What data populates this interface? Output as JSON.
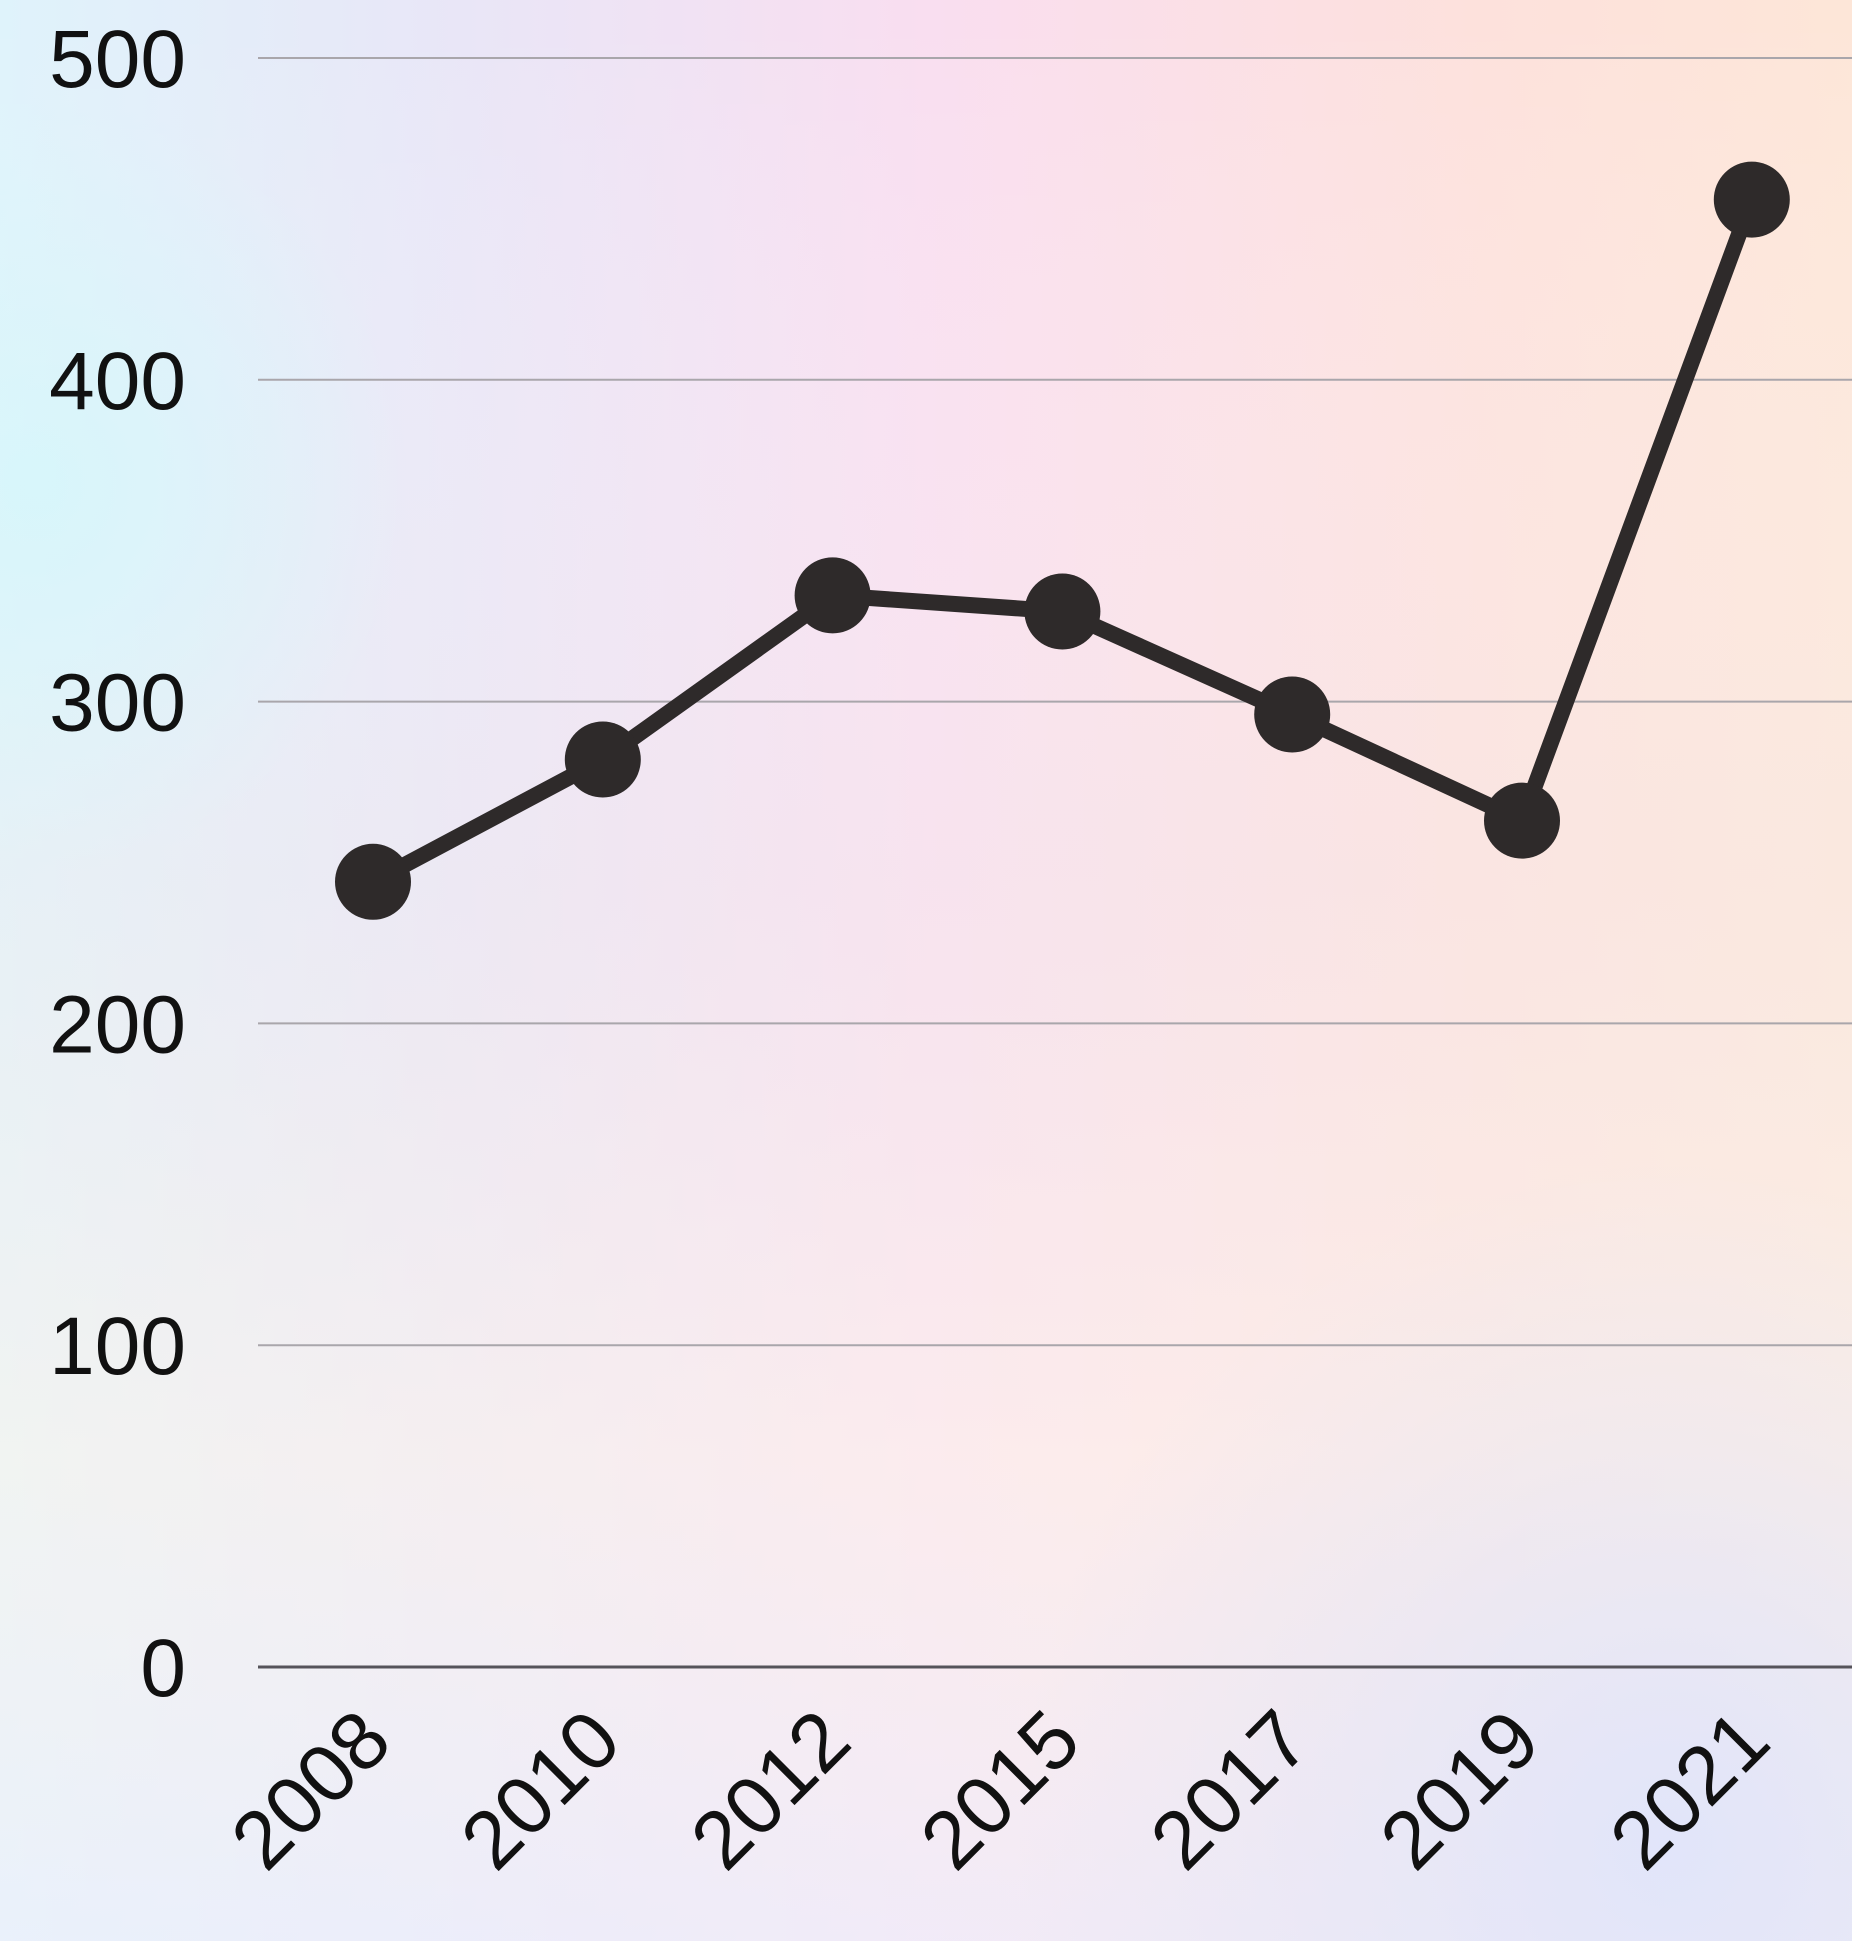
{
  "chart_data": {
    "type": "line",
    "title": "",
    "xlabel": "",
    "ylabel": "",
    "categories": [
      "2008",
      "2010",
      "2012",
      "2015",
      "2017",
      "2019",
      "2021"
    ],
    "series": [
      {
        "values": [
          244,
          282,
          333,
          328,
          296,
          263,
          456
        ]
      }
    ],
    "ylim": [
      0,
      500
    ],
    "yticks": [
      "0",
      "100",
      "200",
      "300",
      "400",
      "500"
    ],
    "grid": true,
    "legend": "none",
    "colors": {
      "line": "#2e2a2a",
      "marker": "#2e2a2a",
      "grid": "#a9a6ab",
      "baseline": "#55535a",
      "text": "#111111"
    }
  }
}
